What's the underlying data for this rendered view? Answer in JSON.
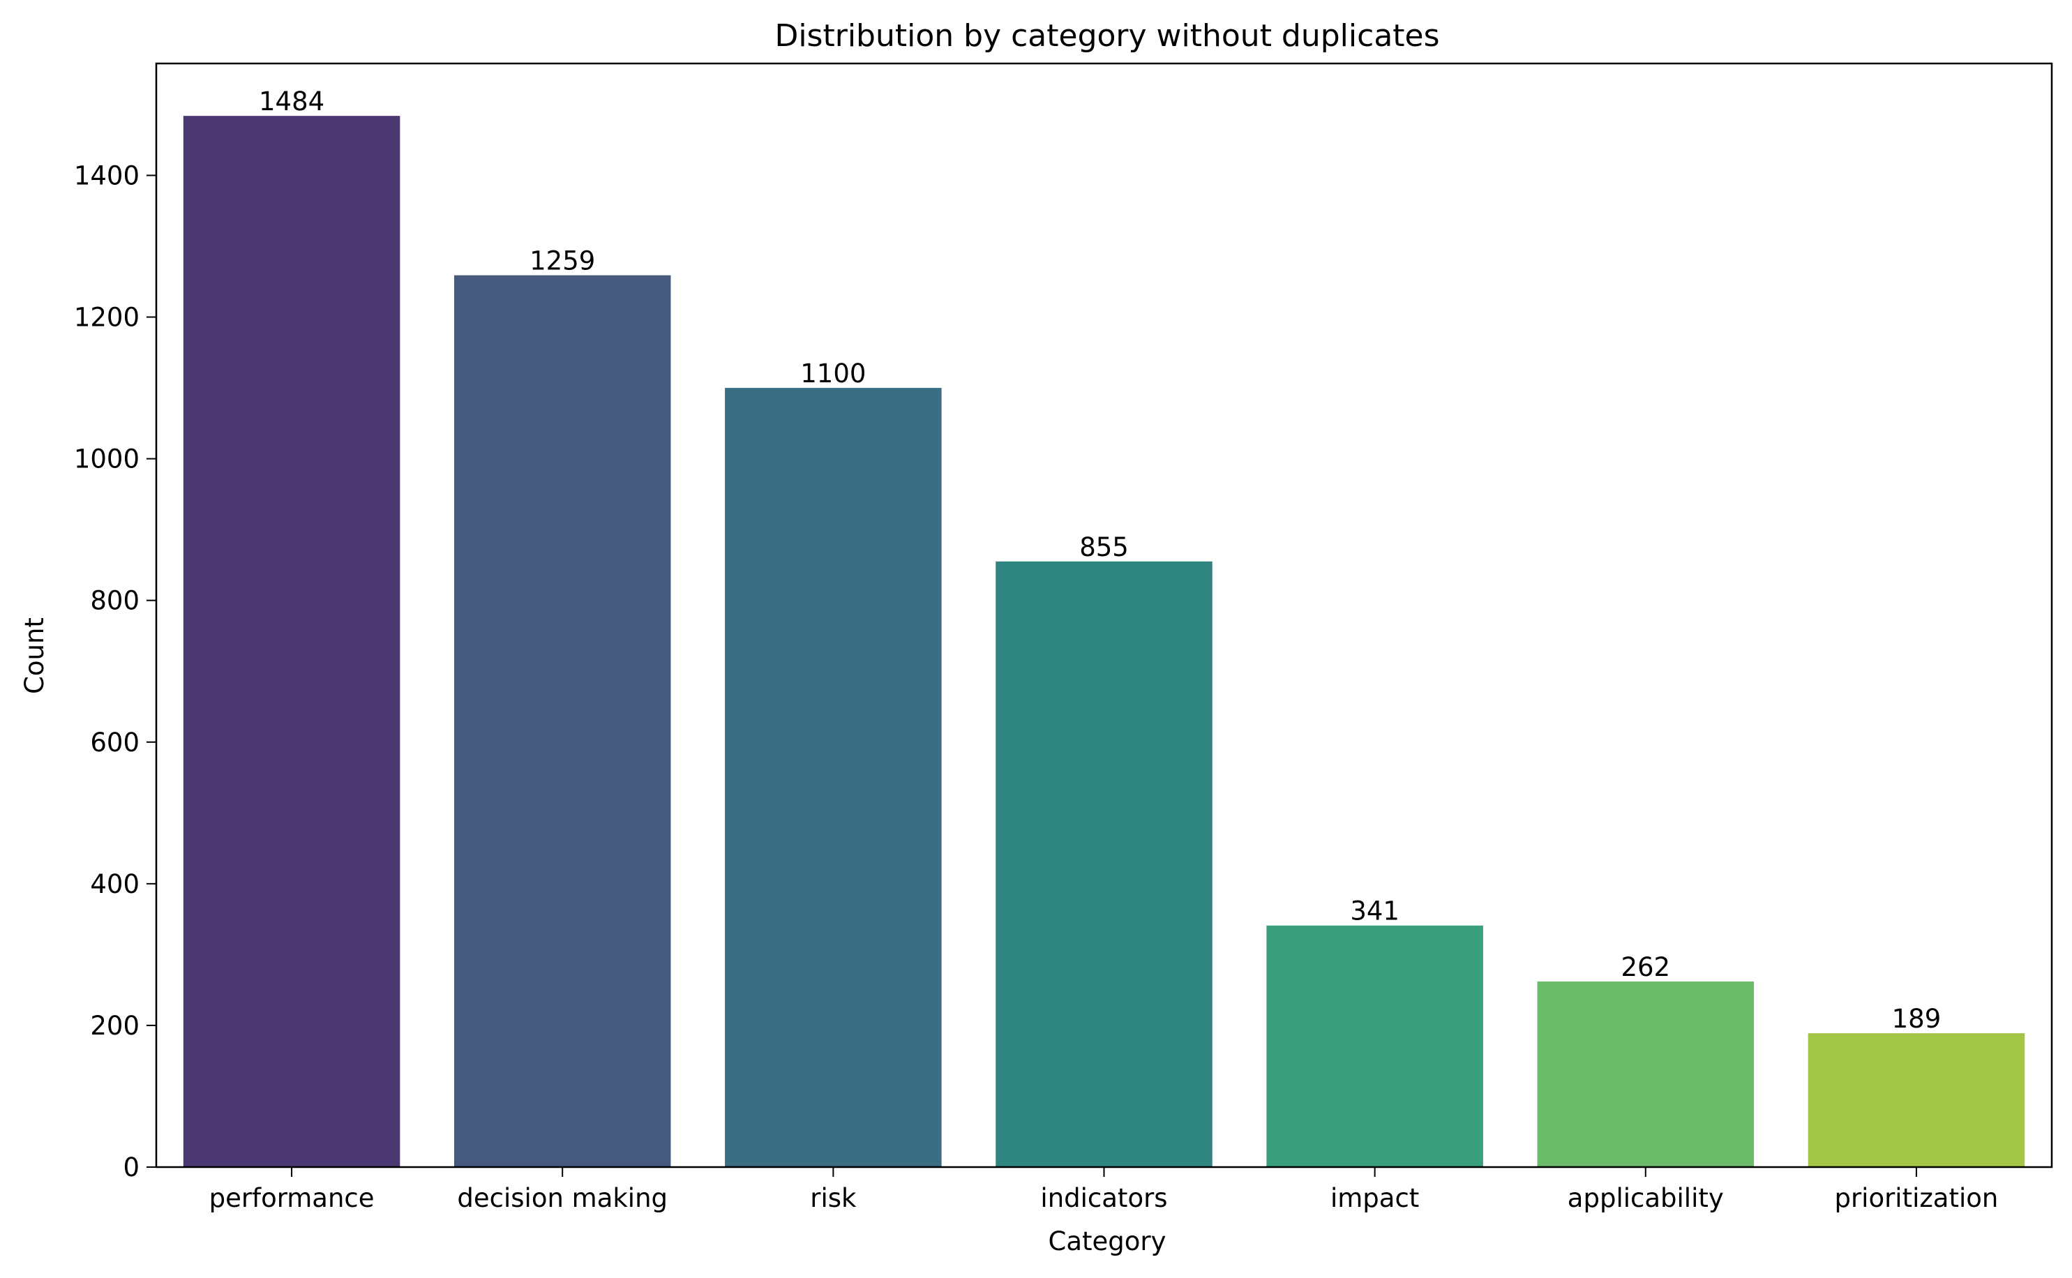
{
  "chart_data": {
    "type": "bar",
    "title": "Distribution by category without duplicates",
    "xlabel": "Category",
    "ylabel": "Count",
    "categories": [
      "performance",
      "decision making",
      "risk",
      "indicators",
      "impact",
      "applicability",
      "prioritization"
    ],
    "values": [
      1484,
      1259,
      1100,
      855,
      341,
      262,
      189
    ],
    "colors": [
      "#4b3771",
      "#465a80",
      "#3b6e82",
      "#2f8580",
      "#3a9f7c",
      "#6bbb6b",
      "#a4c646"
    ],
    "ylim": [
      0,
      1558
    ],
    "yticks": [
      0,
      200,
      400,
      600,
      800,
      1000,
      1200,
      1400
    ],
    "grid": false,
    "legend": "none",
    "data_labels": true
  }
}
